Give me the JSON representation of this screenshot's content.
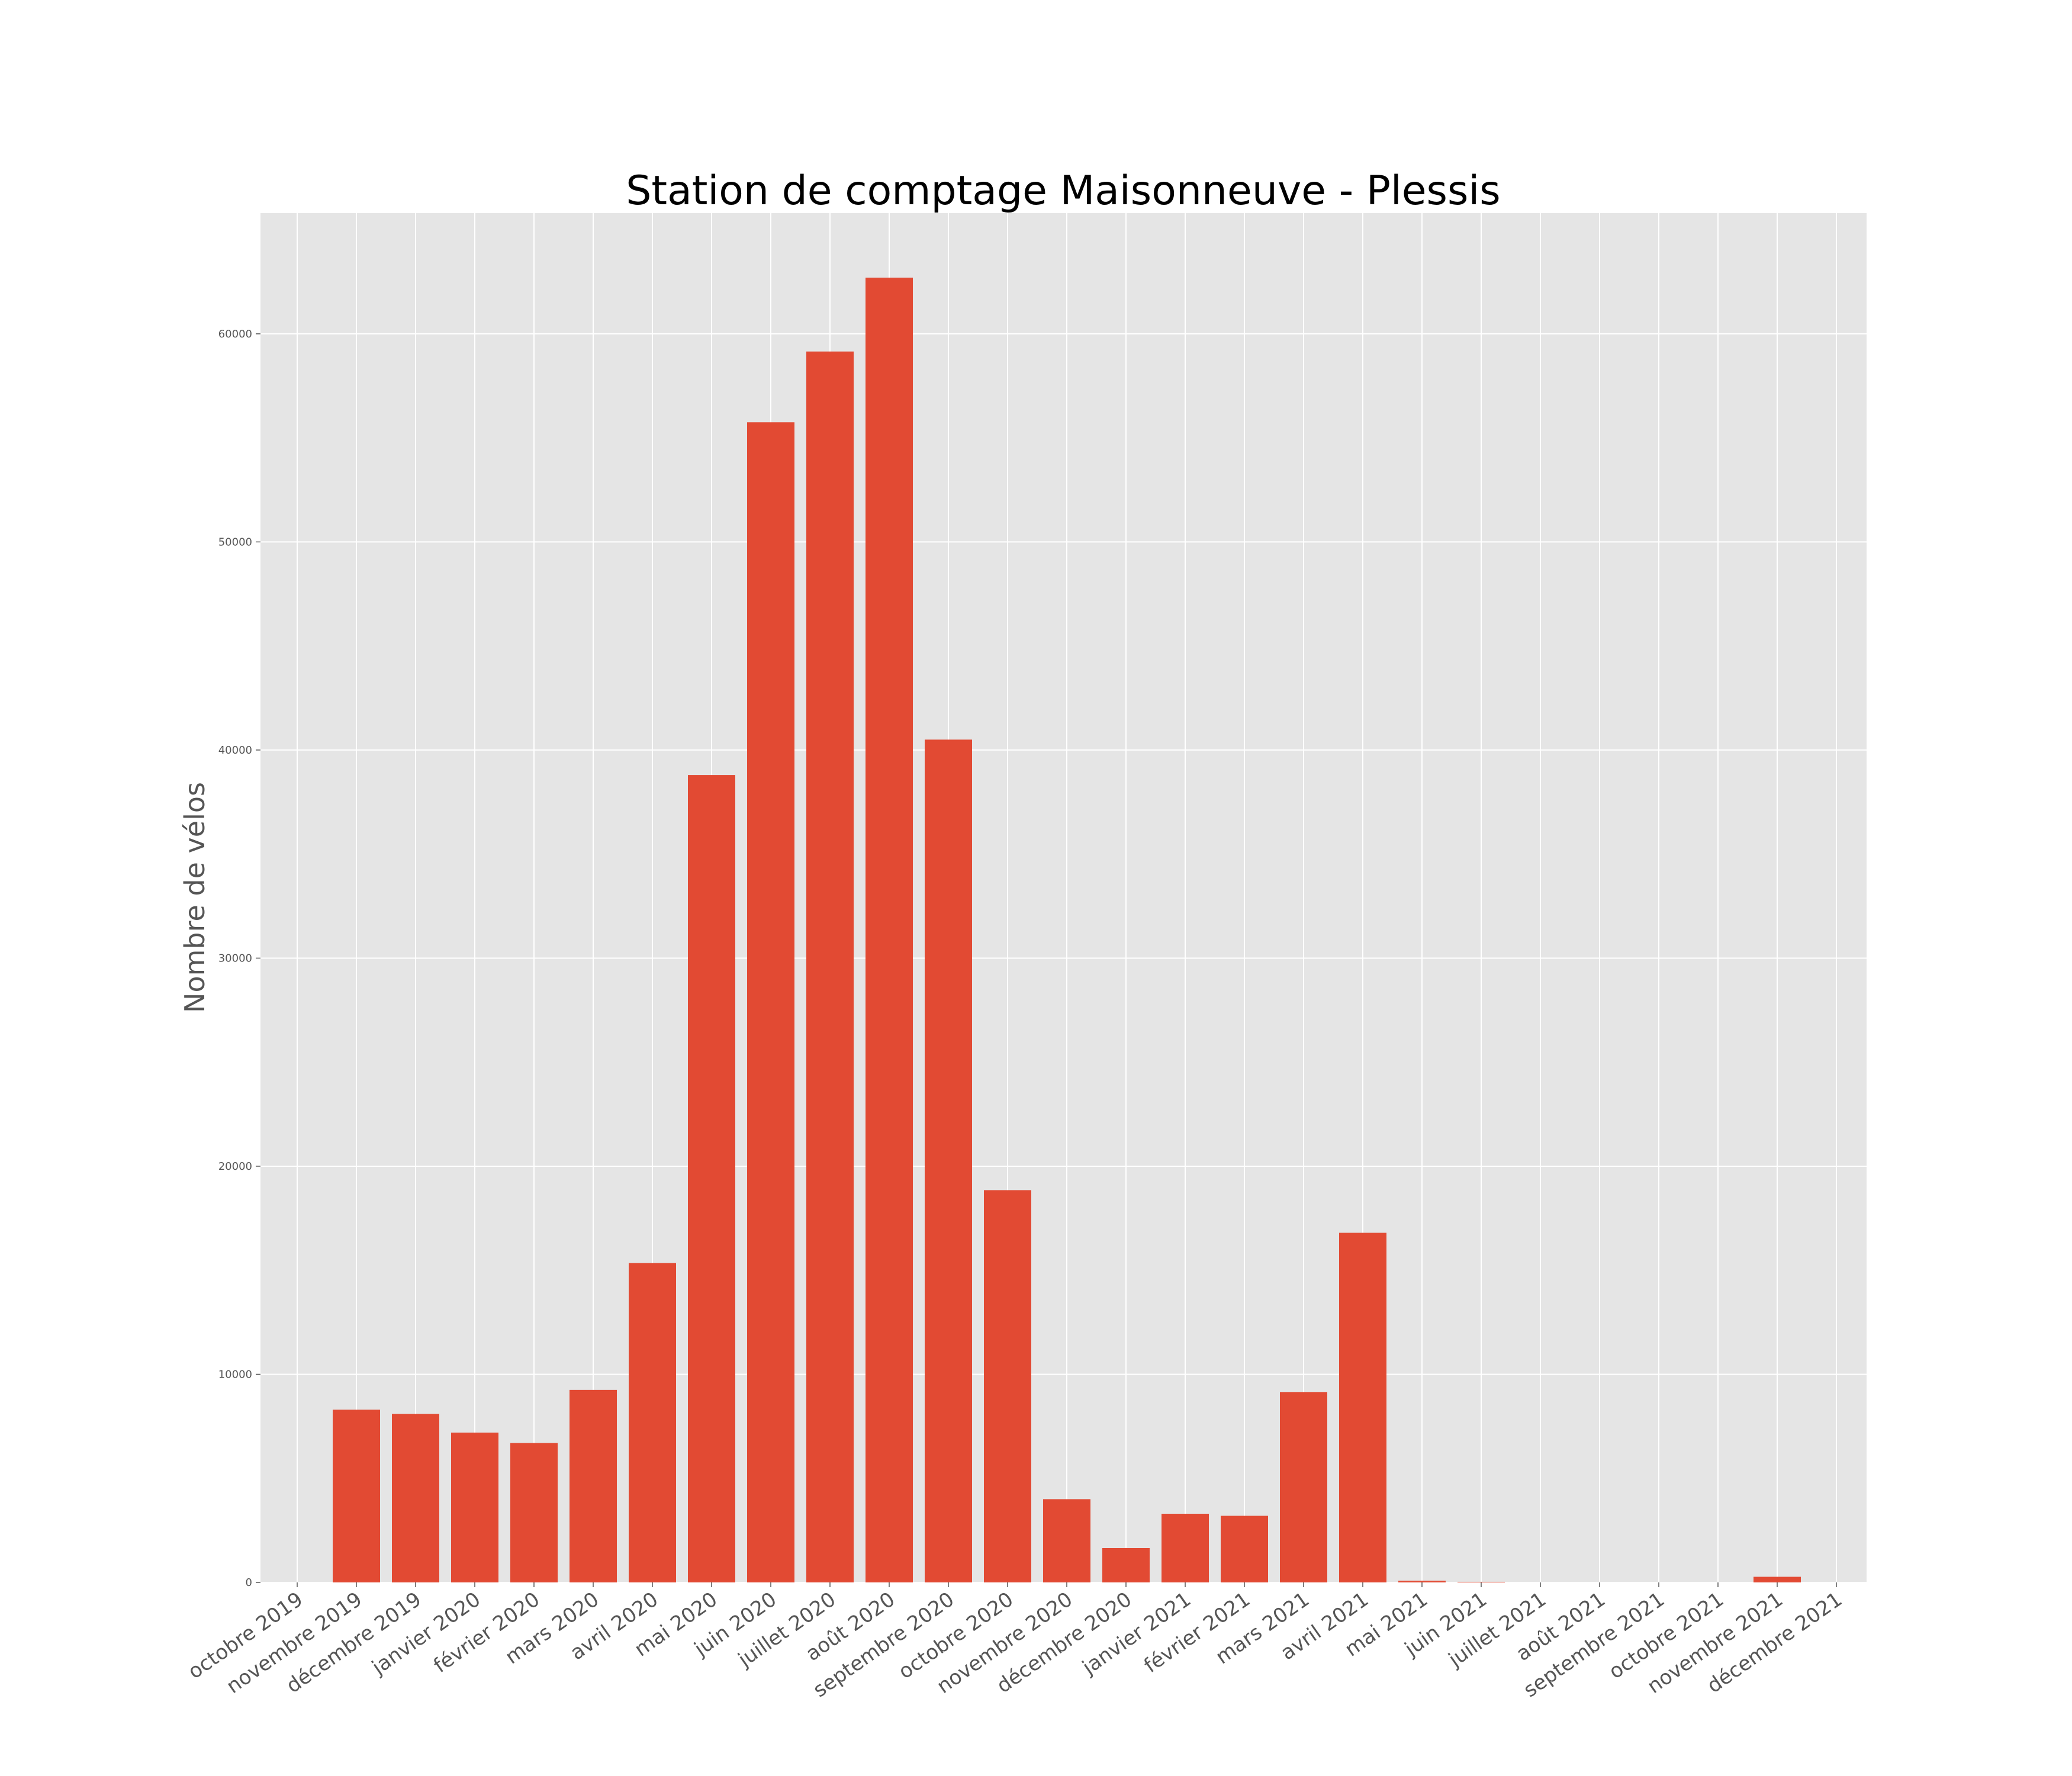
{
  "chart_data": {
    "type": "bar",
    "title": "Station de comptage Maisonneuve - Plessis",
    "xlabel": "",
    "ylabel": "Nombre de vélos",
    "categories": [
      "octobre 2019",
      "novembre 2019",
      "décembre 2019",
      "janvier 2020",
      "février 2020",
      "mars 2020",
      "avril 2020",
      "mai 2020",
      "juin 2020",
      "juillet 2020",
      "août 2020",
      "septembre 2020",
      "octobre 2020",
      "novembre 2020",
      "décembre 2020",
      "janvier 2021",
      "février 2021",
      "mars 2021",
      "avril 2021",
      "mai 2021",
      "juin 2021",
      "juillet 2021",
      "août 2021",
      "septembre 2021",
      "octobre 2021",
      "novembre 2021",
      "décembre 2021"
    ],
    "bars": [
      {
        "label": "novembre 2019",
        "value": 8300
      },
      {
        "label": "décembre 2019",
        "value": 8100
      },
      {
        "label": "janvier 2020",
        "value": 7200
      },
      {
        "label": "février 2020",
        "value": 6700
      },
      {
        "label": "mars 2020",
        "value": 9250
      },
      {
        "label": "avril 2020",
        "value": 15350
      },
      {
        "label": "mai 2020",
        "value": 38800
      },
      {
        "label": "juin 2020",
        "value": 55750
      },
      {
        "label": "juillet 2020",
        "value": 59150
      },
      {
        "label": "août 2020",
        "value": 62700
      },
      {
        "label": "septembre 2020",
        "value": 40500
      },
      {
        "label": "octobre 2020",
        "value": 18850
      },
      {
        "label": "novembre 2020",
        "value": 4000
      },
      {
        "label": "décembre 2020",
        "value": 1650
      },
      {
        "label": "janvier 2021",
        "value": 3300
      },
      {
        "label": "février 2021",
        "value": 3200
      },
      {
        "label": "mars 2021",
        "value": 9150
      },
      {
        "label": "avril 2021",
        "value": 16800
      },
      {
        "label": "mai 2021",
        "value": 80
      },
      {
        "label": "juin 2021",
        "value": 30
      },
      {
        "label": "novembre 2021",
        "value": 270
      }
    ],
    "yticks": [
      0,
      10000,
      20000,
      30000,
      40000,
      50000,
      60000
    ],
    "ytick_labels": [
      "0",
      "10000",
      "20000",
      "30000",
      "40000",
      "50000",
      "60000"
    ],
    "ylim": [
      0,
      65800
    ],
    "bar_color": "#e24a33",
    "background_color": "#e5e5e5",
    "grid": true,
    "x_tick_rotation": "rotated ~35° counter-clockwise"
  }
}
